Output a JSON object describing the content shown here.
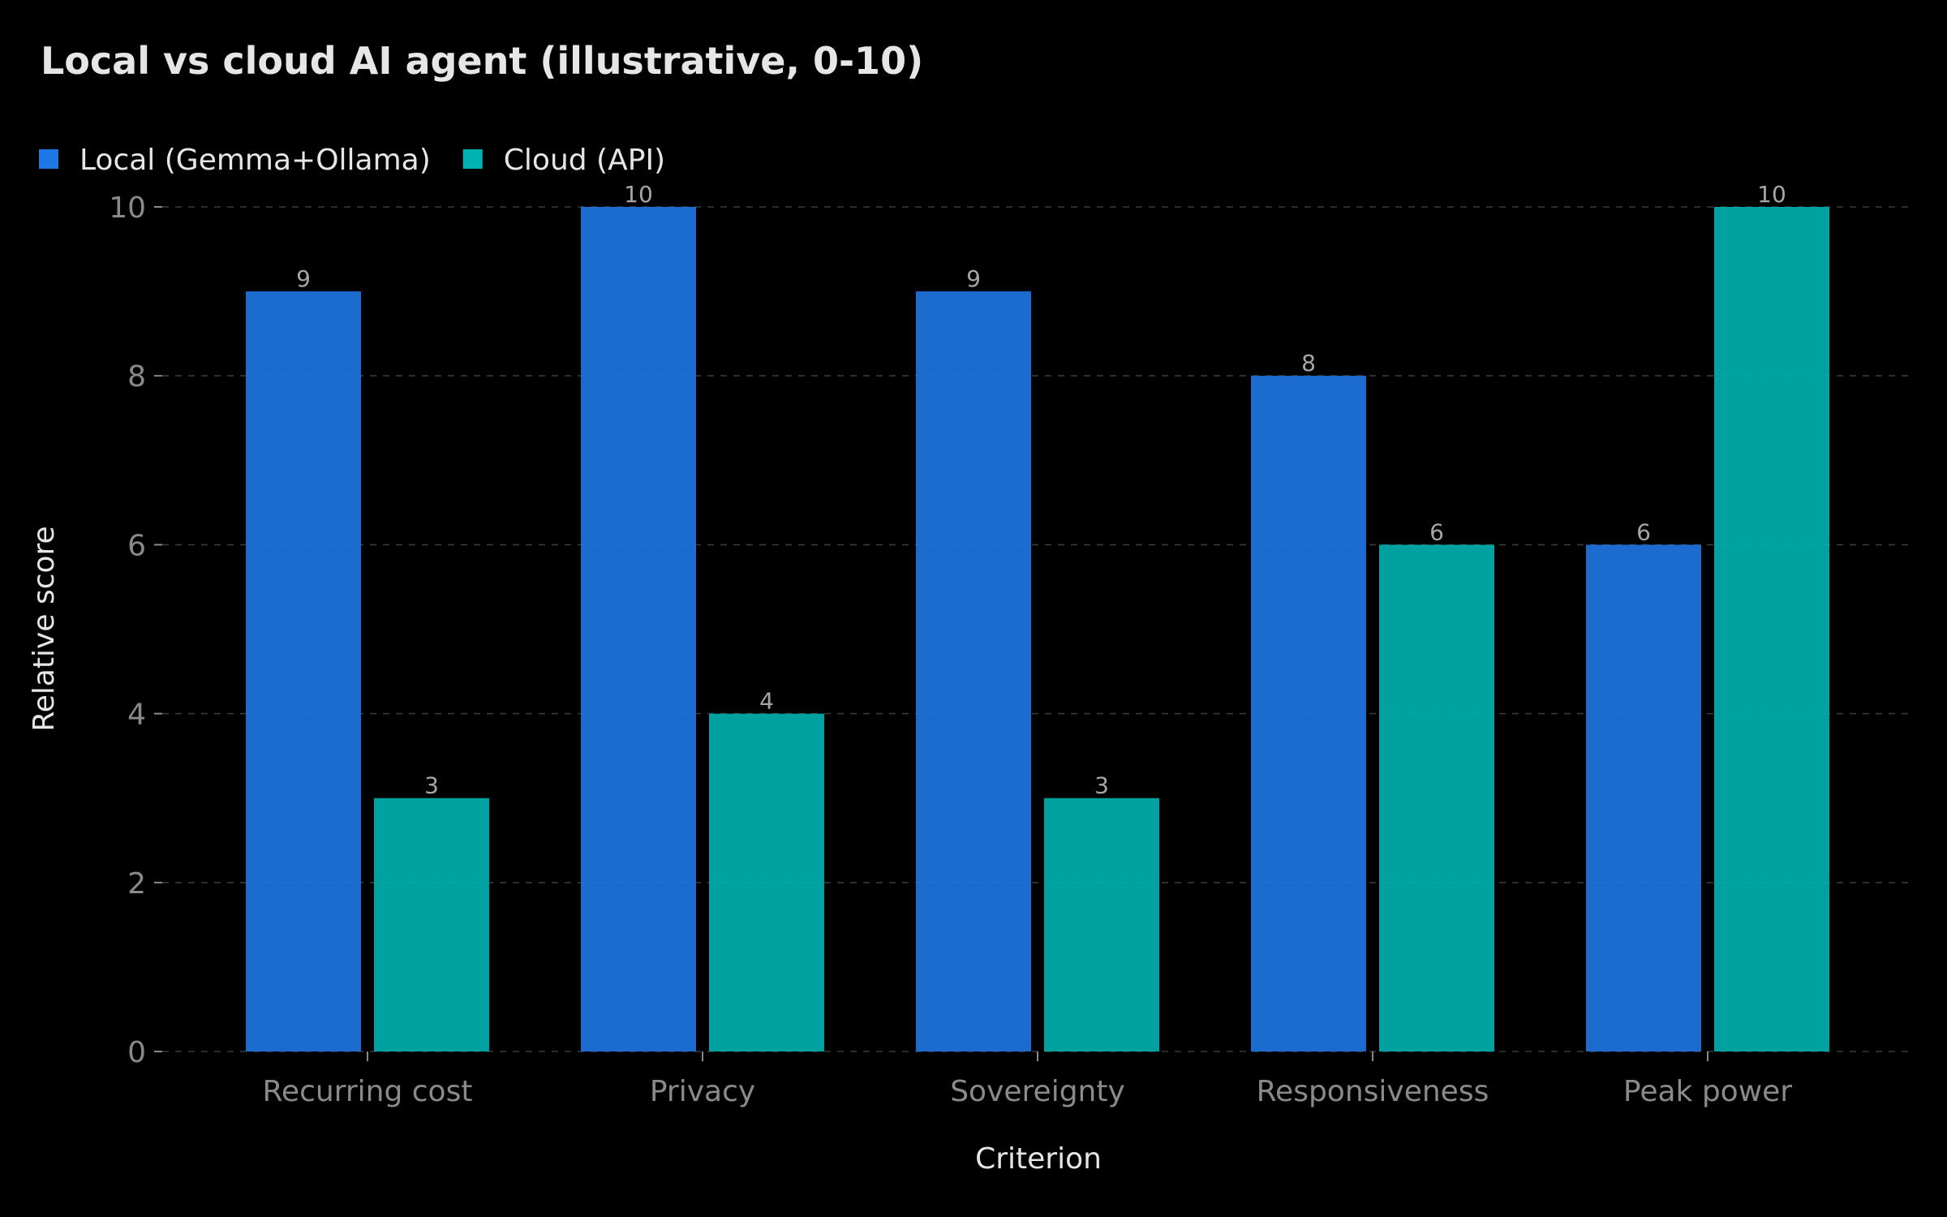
{
  "chart_data": {
    "type": "bar",
    "title": "Local vs cloud AI agent (illustrative, 0-10)",
    "xlabel": "Criterion",
    "ylabel": "Relative score",
    "categories": [
      "Recurring cost",
      "Privacy",
      "Sovereignty",
      "Responsiveness",
      "Peak power"
    ],
    "series": [
      {
        "name": "Local (Gemma+Ollama)",
        "values": [
          9,
          10,
          9,
          8,
          6
        ],
        "color": "#1f77e6"
      },
      {
        "name": "Cloud (API)",
        "values": [
          3,
          4,
          3,
          6,
          10
        ],
        "color": "#00b3b3"
      }
    ],
    "ylim": [
      0,
      10
    ],
    "yticks": [
      0,
      2,
      4,
      6,
      8,
      10
    ],
    "grid": true,
    "legend_position": "top-left",
    "show_data_labels": true
  },
  "colors": {
    "background": "#000000",
    "title_text": "#e6e6e6",
    "axis_label_text": "#e6e6e6",
    "tick_text": "#8a8a8a",
    "data_label_text": "#a6a6a6",
    "grid": "#3a3a3a"
  }
}
